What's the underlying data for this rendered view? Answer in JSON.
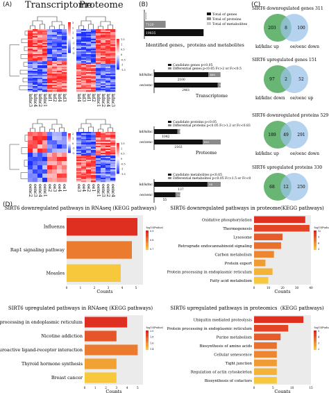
{
  "panels": {
    "A": "(A)",
    "B": "(B)",
    "C": "(C)",
    "D": "(D)"
  },
  "heatmap_top": {
    "titles": [
      "Transcriptome",
      "Proteome"
    ],
    "col_labels_left": [
      "kdnc3",
      "kdnc4",
      "kdnc2",
      "kdnc1",
      "kd1",
      "kd2",
      "kd4",
      "kd3"
    ],
    "col_labels_right": [
      "kd4",
      "kd3",
      "kd1",
      "kd2",
      "kdnc1",
      "kdnc2",
      "kdnc4",
      "kdnc3"
    ],
    "legend_left": [
      "3",
      "2",
      "1",
      "0",
      "-1",
      "-2",
      "-3"
    ],
    "legend_right": [
      "1.5",
      "1",
      "0.5",
      "0",
      "-0.5",
      "-1",
      "-1.5"
    ]
  },
  "heatmap_bottom": {
    "col_labels_left": [
      "oenc2",
      "oenc3",
      "oenc4",
      "oenc1",
      "oe2",
      "oe3",
      "oe4",
      "oe1"
    ],
    "col_labels_right": [
      "oe3",
      "oe4",
      "oe2",
      "oe1",
      "oenc1",
      "oenc3",
      "oenc2",
      "oenc4"
    ],
    "legend_left": [
      "2",
      "1",
      "0",
      "-1",
      "-2"
    ],
    "legend_right": [
      "1.5",
      "1",
      "0.5",
      "0",
      "-0.5",
      "-1",
      "-1.5"
    ]
  },
  "colors": {
    "red": "#d7262b",
    "blue": "#2b3ec8",
    "white": "#ffffff",
    "black": "#111111",
    "gray": "#8a8a8a",
    "lightgray": "#c8c8c8",
    "venn_green": "#4fa85a",
    "venn_blue": "#9cc3e8"
  },
  "chart_data": [
    {
      "type": "bar",
      "orientation": "horizontal",
      "legend": [
        "Total of genes",
        "Total of proteins",
        "Total of metabolites"
      ],
      "categories": [
        "Total of metabolites",
        "Total of proteins",
        "Total of genes"
      ],
      "values": [
        776,
        7120,
        19835
      ],
      "xlabel": "Identified genes，proteins and metabolites"
    },
    {
      "type": "bar",
      "orientation": "horizontal",
      "stacked": true,
      "legend": [
        "Candidate genes p<0.05",
        "Differential genes p<0.05 Fc>2 or Fc<0.5"
      ],
      "categories": [
        "kd/kdnc",
        "oe/oenc"
      ],
      "series": [
        {
          "values": [
            2100,
            2461
          ]
        },
        {
          "values": [
            466,
            113
          ]
        }
      ],
      "xlabel": "Transcriptome"
    },
    {
      "type": "bar",
      "orientation": "horizontal",
      "stacked": true,
      "legend": [
        "Candidate proteins p<0.05",
        "Differential proteins p<0.05 Fc>1.2 or Fc<0.83"
      ],
      "categories": [
        "kd/kdnc",
        "oe/oenc"
      ],
      "series": [
        {
          "values": [
            1042,
            2163
          ]
        },
        {
          "values": [
            118,
            802
          ]
        }
      ],
      "xlabel": "Proteome"
    },
    {
      "type": "bar",
      "orientation": "horizontal",
      "stacked": true,
      "legend": [
        "Candidate metabolites p<0.05",
        "Differential metabolites p<0.05 Fc>1.5 or Fc<0.67"
      ],
      "categories": [
        "kd/kdnc",
        "oe/oenc"
      ],
      "series": [
        {
          "values": [
            137,
            55
          ]
        },
        {
          "values": [
            34,
            12
          ]
        }
      ],
      "xlabel": "Metabolome"
    },
    {
      "type": "venn",
      "title": "SIRT6 downregulated genes 311",
      "left_only": 203,
      "overlap": 8,
      "right_only": 100,
      "labels": [
        "kd/kdnc up",
        "oe/oenc down"
      ]
    },
    {
      "type": "venn",
      "title": "SIRT6 upregulated genes 151",
      "left_only": 97,
      "overlap": 2,
      "right_only": 52,
      "labels": [
        "kd/kdnc down",
        "oe/oenc up"
      ]
    },
    {
      "type": "venn",
      "title": "SIRT6 downregulated proteins 529",
      "left_only": 189,
      "overlap": 49,
      "right_only": 291,
      "labels": [
        "kd/kdnc up",
        "oe/oenc down"
      ]
    },
    {
      "type": "venn",
      "title": "SIRT6 upregulated proteins 330",
      "left_only": 68,
      "overlap": 12,
      "right_only": 250,
      "labels": [
        "kd/kdnc down",
        "oe/oenc up"
      ]
    },
    {
      "type": "bar",
      "orientation": "horizontal",
      "title": "SIRT6 downregulated pathways in RNAseq (KEGG pathways)",
      "categories": [
        "Influenza",
        "Rap1 signaling pathway",
        "Measles"
      ],
      "values": [
        5.1,
        4.7,
        3.9
      ],
      "xticks": [
        "0",
        "1",
        "2",
        "3",
        "4",
        "5"
      ],
      "xlim": [
        0,
        5.5
      ],
      "xlabel": "Counts",
      "legend_title": "-log10(Pvalue)",
      "legend_ticks": [
        "0.9",
        "0.8",
        "0.7"
      ]
    },
    {
      "type": "bar",
      "orientation": "horizontal",
      "title": "SIRT6 downregulated pathways in proteome(KEGG pathways)",
      "categories": [
        "Oxidative phosphorylation",
        "Thermogenesis",
        "Lysosome",
        "Retrograde endocannabinoid signaling",
        "Carbon metabolism",
        "Protein export",
        "Protein processing in endoplasmic reticulum",
        "Fatty acid metabolism"
      ],
      "values": [
        36,
        39,
        20,
        19,
        14,
        8,
        13,
        10
      ],
      "xticks": [
        "0",
        "10",
        "20",
        "30",
        "40"
      ],
      "xlim": [
        0,
        40
      ],
      "xlabel": "Counts",
      "legend_title": "-log10(Pvalue)",
      "legend_ticks": [
        "12",
        "9",
        "6",
        "3"
      ]
    },
    {
      "type": "bar",
      "orientation": "horizontal",
      "title": "SIRT6 upregulated pathways in RNAseq (KEGG pathways)",
      "categories": [
        "Protein processing in endoplasmic reticulum",
        "Nicotine addiction",
        "Neuroactive ligand-receptor interaction",
        "Thyroid hormone synthesis",
        "Breast cancer"
      ],
      "values": [
        4,
        3,
        5,
        3,
        3
      ],
      "xticks": [
        "0",
        "1",
        "2",
        "3",
        "4",
        "5"
      ],
      "xlim": [
        0,
        5.5
      ],
      "xlabel": "Counts",
      "legend_title": "-log10(Pvalue)",
      "legend_ticks": [
        "2.0",
        "1.8",
        "1.6",
        "1.4"
      ]
    },
    {
      "type": "bar",
      "orientation": "horizontal",
      "title": "SIRT6 upregulated pathways in proteomics（KEGG pathways)",
      "categories": [
        "Ubiquitin mediated proteolysis",
        "Protein processing in endoplasmic reticulum",
        "Purine metabolism",
        "Biosynthesis of amino acids",
        "Cellular senescence",
        "Tight junction",
        "Regulation of actin cytoskeleton",
        "Biosynthesis of cofactors"
      ],
      "values": [
        13,
        9,
        7,
        6,
        6,
        6,
        6,
        6
      ],
      "xticks": [
        "0",
        "5",
        "10",
        "15"
      ],
      "xlim": [
        0,
        15
      ],
      "xlabel": "Counts",
      "legend_title": "-log10(Pvalue)",
      "legend_ticks": [
        "5",
        "4",
        "3",
        "2"
      ]
    }
  ]
}
